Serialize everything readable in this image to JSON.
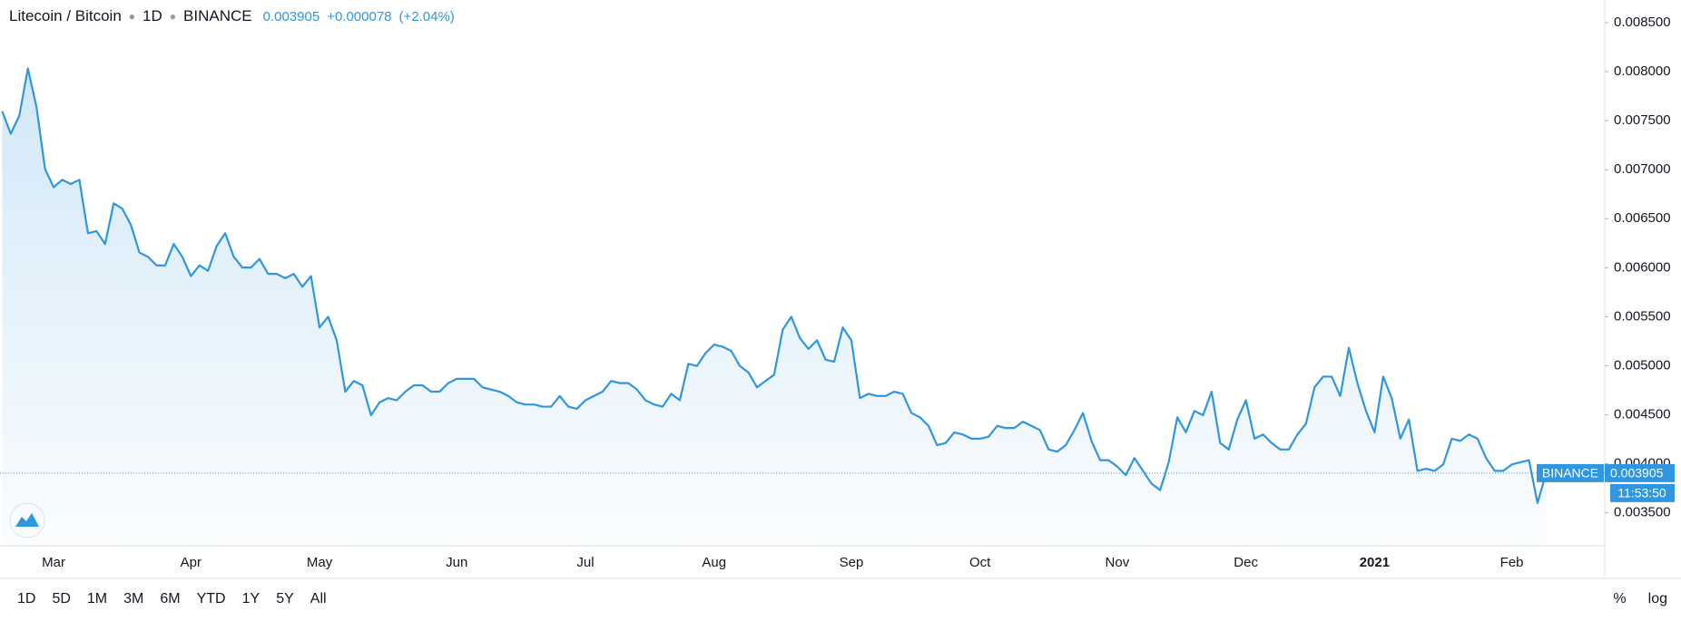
{
  "header": {
    "symbol": "Litecoin / Bitcoin",
    "interval": "1D",
    "exchange": "BINANCE",
    "change": "+0.000078",
    "change_pct": "(+2.04%)"
  },
  "chart_data": {
    "type": "line",
    "categories": [
      null,
      null,
      null,
      null,
      null,
      null,
      "Mar",
      null,
      null,
      null,
      null,
      null,
      null,
      null,
      null,
      null,
      null,
      null,
      null,
      null,
      null,
      null,
      "Apr",
      null,
      null,
      null,
      null,
      null,
      null,
      null,
      null,
      null,
      null,
      null,
      null,
      null,
      null,
      "May",
      null,
      null,
      null,
      null,
      null,
      null,
      null,
      null,
      null,
      null,
      null,
      null,
      null,
      null,
      null,
      "Jun",
      null,
      null,
      null,
      null,
      null,
      null,
      null,
      null,
      null,
      null,
      null,
      null,
      null,
      null,
      "Jul",
      null,
      null,
      null,
      null,
      null,
      null,
      null,
      null,
      null,
      null,
      null,
      null,
      null,
      null,
      "Aug",
      null,
      null,
      null,
      null,
      null,
      null,
      null,
      null,
      null,
      null,
      null,
      null,
      null,
      null,
      null,
      "Sep",
      null,
      null,
      null,
      null,
      null,
      null,
      null,
      null,
      null,
      null,
      null,
      null,
      null,
      null,
      "Oct",
      null,
      null,
      null,
      null,
      null,
      null,
      null,
      null,
      null,
      null,
      null,
      null,
      null,
      null,
      null,
      "Nov",
      null,
      null,
      null,
      null,
      null,
      null,
      null,
      null,
      null,
      null,
      null,
      null,
      null,
      null,
      "Dec",
      null,
      null,
      null,
      null,
      null,
      null,
      null,
      null,
      null,
      null,
      null,
      null,
      null,
      null,
      "2021",
      null,
      null,
      null,
      null,
      null,
      null,
      null,
      null,
      null,
      null,
      null,
      null,
      null,
      null,
      null,
      "Feb",
      null,
      null,
      null,
      null
    ],
    "series": [
      {
        "name": "BINANCE",
        "color": "#2f96df",
        "values": [
          0.007596,
          0.007367,
          0.007552,
          0.008033,
          0.00764,
          0.007007,
          0.006821,
          0.006897,
          0.006854,
          0.006897,
          0.006352,
          0.006373,
          0.006242,
          0.006657,
          0.006603,
          0.006439,
          0.006155,
          0.006111,
          0.006024,
          0.006024,
          0.006242,
          0.006111,
          0.005915,
          0.006024,
          0.005969,
          0.006221,
          0.006352,
          0.006111,
          0.006002,
          0.006002,
          0.00609,
          0.005937,
          0.005937,
          0.005893,
          0.005937,
          0.005806,
          0.005915,
          0.005391,
          0.0055,
          0.00526,
          0.004736,
          0.004845,
          0.004801,
          0.004496,
          0.004627,
          0.00467,
          0.004648,
          0.004736,
          0.004801,
          0.004801,
          0.004736,
          0.004736,
          0.004823,
          0.004867,
          0.004867,
          0.004867,
          0.00478,
          0.004758,
          0.004736,
          0.004692,
          0.004627,
          0.004605,
          0.004605,
          0.004583,
          0.004583,
          0.004692,
          0.004583,
          0.004561,
          0.004648,
          0.004692,
          0.004736,
          0.004845,
          0.004823,
          0.004823,
          0.004758,
          0.004648,
          0.004605,
          0.004583,
          0.004714,
          0.004648,
          0.00502,
          0.004998,
          0.005129,
          0.005216,
          0.005194,
          0.005151,
          0.004998,
          0.004932,
          0.00478,
          0.004845,
          0.00491,
          0.005369,
          0.0055,
          0.005282,
          0.005172,
          0.00526,
          0.005063,
          0.005041,
          0.005391,
          0.00526,
          0.00467,
          0.004714,
          0.004692,
          0.004692,
          0.004736,
          0.004714,
          0.004518,
          0.004474,
          0.004387,
          0.00419,
          0.004212,
          0.004321,
          0.004299,
          0.004256,
          0.004256,
          0.004277,
          0.004387,
          0.004365,
          0.004365,
          0.00443,
          0.004387,
          0.004343,
          0.004146,
          0.004124,
          0.00419,
          0.004343,
          0.004518,
          0.004234,
          0.004037,
          0.004037,
          0.003972,
          0.003884,
          0.004059,
          0.003928,
          0.003797,
          0.003732,
          0.004015,
          0.004474,
          0.004321,
          0.004539,
          0.004496,
          0.004736,
          0.004212,
          0.004146,
          0.004452,
          0.004648,
          0.004256,
          0.004299,
          0.004212,
          0.004146,
          0.004146,
          0.004299,
          0.004408,
          0.00478,
          0.004889,
          0.004889,
          0.004692,
          0.005183,
          0.004823,
          0.004539,
          0.004321,
          0.004889,
          0.00467,
          0.004256,
          0.004452,
          0.003928,
          0.00395,
          0.003928,
          0.003993,
          0.004256,
          0.004234,
          0.004299,
          0.004256,
          0.004059,
          0.003928,
          0.003928,
          0.003993,
          0.004015,
          0.004037,
          0.0036,
          0.003905
        ]
      }
    ],
    "ylim": [
      0.003164,
      0.008731
    ],
    "yticks": [
      {
        "value": 0.0035,
        "label": "0.003500"
      },
      {
        "value": 0.004,
        "label": "0.004000"
      },
      {
        "value": 0.0045,
        "label": "0.004500"
      },
      {
        "value": 0.005,
        "label": "0.005000"
      },
      {
        "value": 0.0055,
        "label": "0.005500"
      },
      {
        "value": 0.006,
        "label": "0.006000"
      },
      {
        "value": 0.0065,
        "label": "0.006500"
      },
      {
        "value": 0.007,
        "label": "0.007000"
      },
      {
        "value": 0.0075,
        "label": "0.007500"
      },
      {
        "value": 0.008,
        "label": "0.008000"
      },
      {
        "value": 0.0085,
        "label": "0.008500"
      }
    ],
    "grid": false,
    "countdown": "11:53:50"
  },
  "range_buttons": [
    "1D",
    "5D",
    "1M",
    "3M",
    "6M",
    "YTD",
    "1Y",
    "5Y",
    "All"
  ],
  "scale_buttons": [
    "%",
    "log"
  ]
}
